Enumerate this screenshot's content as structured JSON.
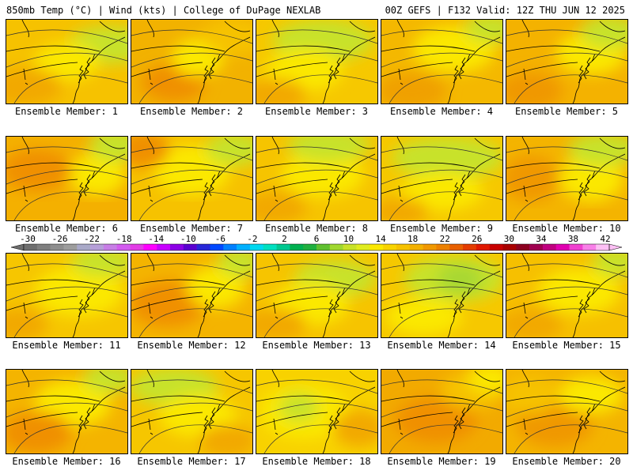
{
  "header": {
    "left": "850mb Temp (°C) | Wind (kts) | College of DuPage NEXLAB",
    "right": "00Z GEFS | F132 Valid: 12Z THU JUN 12 2025"
  },
  "panels": [
    {
      "label": "Ensemble Member: 1",
      "base": "#f6c200",
      "blobs": [
        [
          "#c8e22a",
          0.85,
          0.3,
          0.55,
          0.3
        ],
        [
          "#fbe800",
          0.5,
          0.5,
          0.4,
          0.3
        ],
        [
          "#f2a900",
          0.15,
          0.8,
          0.5,
          0.3
        ]
      ]
    },
    {
      "label": "Ensemble Member: 2",
      "base": "#f2b200",
      "blobs": [
        [
          "#f09000",
          0.35,
          0.75,
          0.4,
          0.3
        ],
        [
          "#fbe800",
          0.55,
          0.45,
          0.3,
          0.3
        ],
        [
          "#f6c200",
          0.85,
          0.2,
          0.4,
          0.3
        ]
      ]
    },
    {
      "label": "Ensemble Member: 3",
      "base": "#f6c800",
      "blobs": [
        [
          "#c8e22a",
          0.55,
          0.25,
          0.7,
          0.35
        ],
        [
          "#fbe800",
          0.4,
          0.6,
          0.5,
          0.35
        ],
        [
          "#f2a900",
          0.15,
          0.9,
          0.4,
          0.25
        ]
      ]
    },
    {
      "label": "Ensemble Member: 4",
      "base": "#f4b800",
      "blobs": [
        [
          "#fbe800",
          0.6,
          0.35,
          0.55,
          0.4
        ],
        [
          "#f0a000",
          0.25,
          0.85,
          0.45,
          0.3
        ],
        [
          "#c8e22a",
          0.9,
          0.1,
          0.3,
          0.2
        ]
      ]
    },
    {
      "label": "Ensemble Member: 5",
      "base": "#f4b200",
      "blobs": [
        [
          "#fbe800",
          0.7,
          0.4,
          0.45,
          0.35
        ],
        [
          "#c8e22a",
          0.85,
          0.15,
          0.35,
          0.25
        ],
        [
          "#f09800",
          0.2,
          0.85,
          0.4,
          0.3
        ]
      ]
    },
    {
      "label": "Ensemble Member: 6",
      "base": "#f4b000",
      "blobs": [
        [
          "#fbe800",
          0.75,
          0.45,
          0.35,
          0.35
        ],
        [
          "#f09000",
          0.25,
          0.4,
          0.45,
          0.35
        ],
        [
          "#c8e22a",
          0.9,
          0.1,
          0.3,
          0.25
        ]
      ]
    },
    {
      "label": "Ensemble Member: 7",
      "base": "#f6c200",
      "blobs": [
        [
          "#fbe800",
          0.5,
          0.4,
          0.5,
          0.45
        ],
        [
          "#f09000",
          0.1,
          0.15,
          0.3,
          0.3
        ],
        [
          "#c8e22a",
          0.85,
          0.15,
          0.35,
          0.25
        ]
      ]
    },
    {
      "label": "Ensemble Member: 8",
      "base": "#f6c400",
      "blobs": [
        [
          "#fbe800",
          0.55,
          0.45,
          0.55,
          0.4
        ],
        [
          "#c8e22a",
          0.6,
          0.1,
          0.55,
          0.25
        ],
        [
          "#f2a900",
          0.15,
          0.85,
          0.4,
          0.25
        ]
      ]
    },
    {
      "label": "Ensemble Member: 9",
      "base": "#f6c800",
      "blobs": [
        [
          "#c8e22a",
          0.55,
          0.25,
          0.8,
          0.35
        ],
        [
          "#fbe800",
          0.5,
          0.65,
          0.55,
          0.3
        ],
        [
          "#f2a900",
          0.15,
          0.9,
          0.35,
          0.2
        ]
      ]
    },
    {
      "label": "Ensemble Member: 10",
      "base": "#f4b400",
      "blobs": [
        [
          "#fbe800",
          0.7,
          0.5,
          0.4,
          0.4
        ],
        [
          "#c8e22a",
          0.8,
          0.15,
          0.45,
          0.25
        ],
        [
          "#f09800",
          0.2,
          0.5,
          0.35,
          0.4
        ]
      ]
    },
    {
      "label": "Ensemble Member: 11",
      "base": "#f6c600",
      "blobs": [
        [
          "#fbe800",
          0.6,
          0.45,
          0.6,
          0.45
        ],
        [
          "#c8e22a",
          0.8,
          0.1,
          0.4,
          0.2
        ],
        [
          "#f2a900",
          0.1,
          0.85,
          0.35,
          0.25
        ]
      ]
    },
    {
      "label": "Ensemble Member: 12",
      "base": "#f4b400",
      "blobs": [
        [
          "#f09000",
          0.3,
          0.6,
          0.5,
          0.4
        ],
        [
          "#fbe800",
          0.7,
          0.4,
          0.35,
          0.35
        ],
        [
          "#c8e22a",
          0.9,
          0.1,
          0.25,
          0.2
        ]
      ]
    },
    {
      "label": "Ensemble Member: 13",
      "base": "#f6c400",
      "blobs": [
        [
          "#c8e22a",
          0.65,
          0.3,
          0.55,
          0.3
        ],
        [
          "#fbe800",
          0.45,
          0.6,
          0.5,
          0.35
        ],
        [
          "#f2a900",
          0.15,
          0.85,
          0.4,
          0.25
        ]
      ]
    },
    {
      "label": "Ensemble Member: 14",
      "base": "#f6c800",
      "blobs": [
        [
          "#c8e22a",
          0.6,
          0.3,
          0.7,
          0.4
        ],
        [
          "#a8d830",
          0.65,
          0.3,
          0.25,
          0.2
        ],
        [
          "#fbe800",
          0.35,
          0.75,
          0.5,
          0.3
        ]
      ]
    },
    {
      "label": "Ensemble Member: 15",
      "base": "#f6c000",
      "blobs": [
        [
          "#fbe800",
          0.6,
          0.45,
          0.55,
          0.4
        ],
        [
          "#f2a900",
          0.2,
          0.85,
          0.4,
          0.25
        ],
        [
          "#c8e22a",
          0.9,
          0.1,
          0.25,
          0.2
        ]
      ]
    },
    {
      "label": "Ensemble Member: 16",
      "base": "#f4b400",
      "blobs": [
        [
          "#fbe800",
          0.55,
          0.4,
          0.5,
          0.4
        ],
        [
          "#f09000",
          0.25,
          0.75,
          0.45,
          0.35
        ],
        [
          "#c8e22a",
          0.85,
          0.1,
          0.3,
          0.2
        ]
      ]
    },
    {
      "label": "Ensemble Member: 17",
      "base": "#f6c600",
      "blobs": [
        [
          "#c8e22a",
          0.35,
          0.2,
          0.6,
          0.3
        ],
        [
          "#fbe800",
          0.55,
          0.55,
          0.5,
          0.35
        ],
        [
          "#f2a900",
          0.8,
          0.85,
          0.35,
          0.25
        ]
      ]
    },
    {
      "label": "Ensemble Member: 18",
      "base": "#f8d200",
      "blobs": [
        [
          "#fbe800",
          0.4,
          0.5,
          0.6,
          0.5
        ],
        [
          "#c8e22a",
          0.35,
          0.45,
          0.2,
          0.2
        ],
        [
          "#f2a900",
          0.85,
          0.7,
          0.3,
          0.3
        ]
      ]
    },
    {
      "label": "Ensemble Member: 19",
      "base": "#f2aa00",
      "blobs": [
        [
          "#f09000",
          0.45,
          0.6,
          0.55,
          0.4
        ],
        [
          "#f6c200",
          0.75,
          0.25,
          0.4,
          0.3
        ],
        [
          "#fbe800",
          0.9,
          0.1,
          0.25,
          0.2
        ]
      ]
    },
    {
      "label": "Ensemble Member: 20",
      "base": "#f4b400",
      "blobs": [
        [
          "#f09800",
          0.4,
          0.65,
          0.5,
          0.4
        ],
        [
          "#fbe800",
          0.7,
          0.3,
          0.4,
          0.3
        ],
        [
          "#f6c200",
          0.2,
          0.3,
          0.35,
          0.3
        ]
      ]
    }
  ],
  "colorbar": {
    "values": [
      "-30",
      "-26",
      "-22",
      "-18",
      "-14",
      "-10",
      "-6",
      "-2",
      "2",
      "6",
      "10",
      "14",
      "18",
      "22",
      "26",
      "30",
      "34",
      "38",
      "42"
    ],
    "colors": [
      "#6e6e6e",
      "#7f7f7f",
      "#8e8e8e",
      "#9d9d9d",
      "#a9a9c8",
      "#b69fd8",
      "#c77ee6",
      "#d35cef",
      "#e23ce6",
      "#ff00ff",
      "#c800ff",
      "#8c00e6",
      "#5a00d0",
      "#2828d8",
      "#0048ff",
      "#0080ff",
      "#00b0ff",
      "#00d8f0",
      "#00e0c0",
      "#00c890",
      "#00b050",
      "#20b040",
      "#60c030",
      "#a0d830",
      "#c8e22a",
      "#e0ec20",
      "#fbe800",
      "#f8d400",
      "#f6c200",
      "#f2b000",
      "#f09800",
      "#ec8000",
      "#e86000",
      "#e43c00",
      "#e01800",
      "#c80000",
      "#a80000",
      "#8c0020",
      "#a00050",
      "#c00080",
      "#e000b0",
      "#f040d0",
      "#f880e8",
      "#fcc0f4"
    ]
  }
}
